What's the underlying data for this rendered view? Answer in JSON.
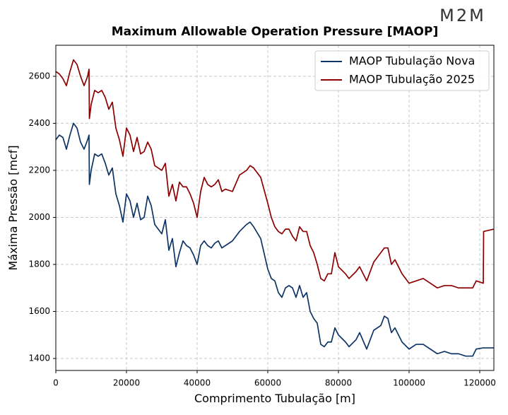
{
  "logo": "M2M",
  "chart_data": {
    "type": "line",
    "title": "Maximum Allowable Operation Pressure [MAOP]",
    "xlabel": "Comprimento Tubulação [m]",
    "ylabel": "Máxima Pressão [mcf]",
    "xlim": [
      0,
      124000
    ],
    "ylim": [
      1349,
      2732
    ],
    "xticks": [
      0,
      20000,
      40000,
      60000,
      80000,
      100000,
      120000
    ],
    "yticks": [
      1400,
      1600,
      1800,
      2000,
      2200,
      2400,
      2600
    ],
    "grid": true,
    "legend": "upper right",
    "x": [
      0,
      1000,
      2000,
      3000,
      4000,
      5000,
      6000,
      7000,
      8000,
      9000,
      9400,
      9500,
      10000,
      11000,
      12000,
      13000,
      14000,
      15000,
      16000,
      17000,
      18000,
      19000,
      20000,
      21000,
      22000,
      23000,
      24000,
      25000,
      26000,
      27000,
      28000,
      30000,
      31000,
      32000,
      33000,
      34000,
      35000,
      36000,
      37000,
      38000,
      39000,
      40000,
      41000,
      42000,
      43000,
      44000,
      45000,
      46000,
      47000,
      48000,
      50000,
      52000,
      54000,
      55000,
      56000,
      58000,
      60000,
      61000,
      62000,
      63000,
      64000,
      65000,
      66000,
      67000,
      68000,
      69000,
      70000,
      71000,
      72000,
      73000,
      74000,
      75000,
      76000,
      77000,
      78000,
      79000,
      80000,
      82000,
      83000,
      85000,
      86000,
      88000,
      90000,
      92000,
      93000,
      94000,
      95000,
      96000,
      98000,
      100000,
      102000,
      104000,
      106000,
      108000,
      110000,
      112000,
      114000,
      116000,
      118000,
      119000,
      121000,
      121100,
      124000
    ],
    "series": [
      {
        "name": "MAOP Tubulação Nova",
        "color": "#0d3466",
        "values": [
          2330,
          2350,
          2340,
          2290,
          2350,
          2400,
          2380,
          2320,
          2290,
          2330,
          2350,
          2140,
          2200,
          2270,
          2260,
          2270,
          2230,
          2180,
          2210,
          2100,
          2050,
          1980,
          2100,
          2070,
          2000,
          2060,
          1990,
          2000,
          2090,
          2050,
          1970,
          1930,
          1990,
          1860,
          1910,
          1790,
          1850,
          1900,
          1880,
          1870,
          1840,
          1800,
          1880,
          1900,
          1880,
          1870,
          1890,
          1900,
          1870,
          1880,
          1900,
          1940,
          1970,
          1980,
          1960,
          1910,
          1780,
          1740,
          1730,
          1680,
          1660,
          1700,
          1710,
          1700,
          1660,
          1710,
          1660,
          1680,
          1600,
          1570,
          1550,
          1460,
          1450,
          1470,
          1470,
          1530,
          1500,
          1470,
          1450,
          1480,
          1510,
          1440,
          1520,
          1540,
          1580,
          1570,
          1510,
          1530,
          1470,
          1440,
          1460,
          1460,
          1440,
          1420,
          1430,
          1420,
          1420,
          1410,
          1410,
          1440,
          1445,
          1445,
          1445
        ]
      },
      {
        "name": "MAOP Tubulação 2025",
        "color": "#8b0000",
        "values": [
          2620,
          2610,
          2590,
          2560,
          2620,
          2670,
          2650,
          2600,
          2560,
          2600,
          2630,
          2420,
          2480,
          2540,
          2530,
          2540,
          2510,
          2460,
          2490,
          2380,
          2330,
          2260,
          2380,
          2350,
          2280,
          2340,
          2270,
          2280,
          2320,
          2290,
          2220,
          2200,
          2230,
          2090,
          2140,
          2070,
          2150,
          2130,
          2130,
          2100,
          2060,
          2000,
          2110,
          2170,
          2140,
          2130,
          2140,
          2160,
          2110,
          2120,
          2110,
          2180,
          2200,
          2220,
          2210,
          2170,
          2060,
          2000,
          1960,
          1940,
          1930,
          1950,
          1950,
          1920,
          1900,
          1960,
          1940,
          1940,
          1880,
          1850,
          1800,
          1740,
          1730,
          1760,
          1760,
          1850,
          1790,
          1760,
          1740,
          1770,
          1790,
          1730,
          1810,
          1850,
          1870,
          1870,
          1800,
          1820,
          1760,
          1720,
          1730,
          1740,
          1720,
          1700,
          1710,
          1710,
          1700,
          1700,
          1700,
          1730,
          1720,
          1940,
          1950
        ]
      }
    ]
  }
}
